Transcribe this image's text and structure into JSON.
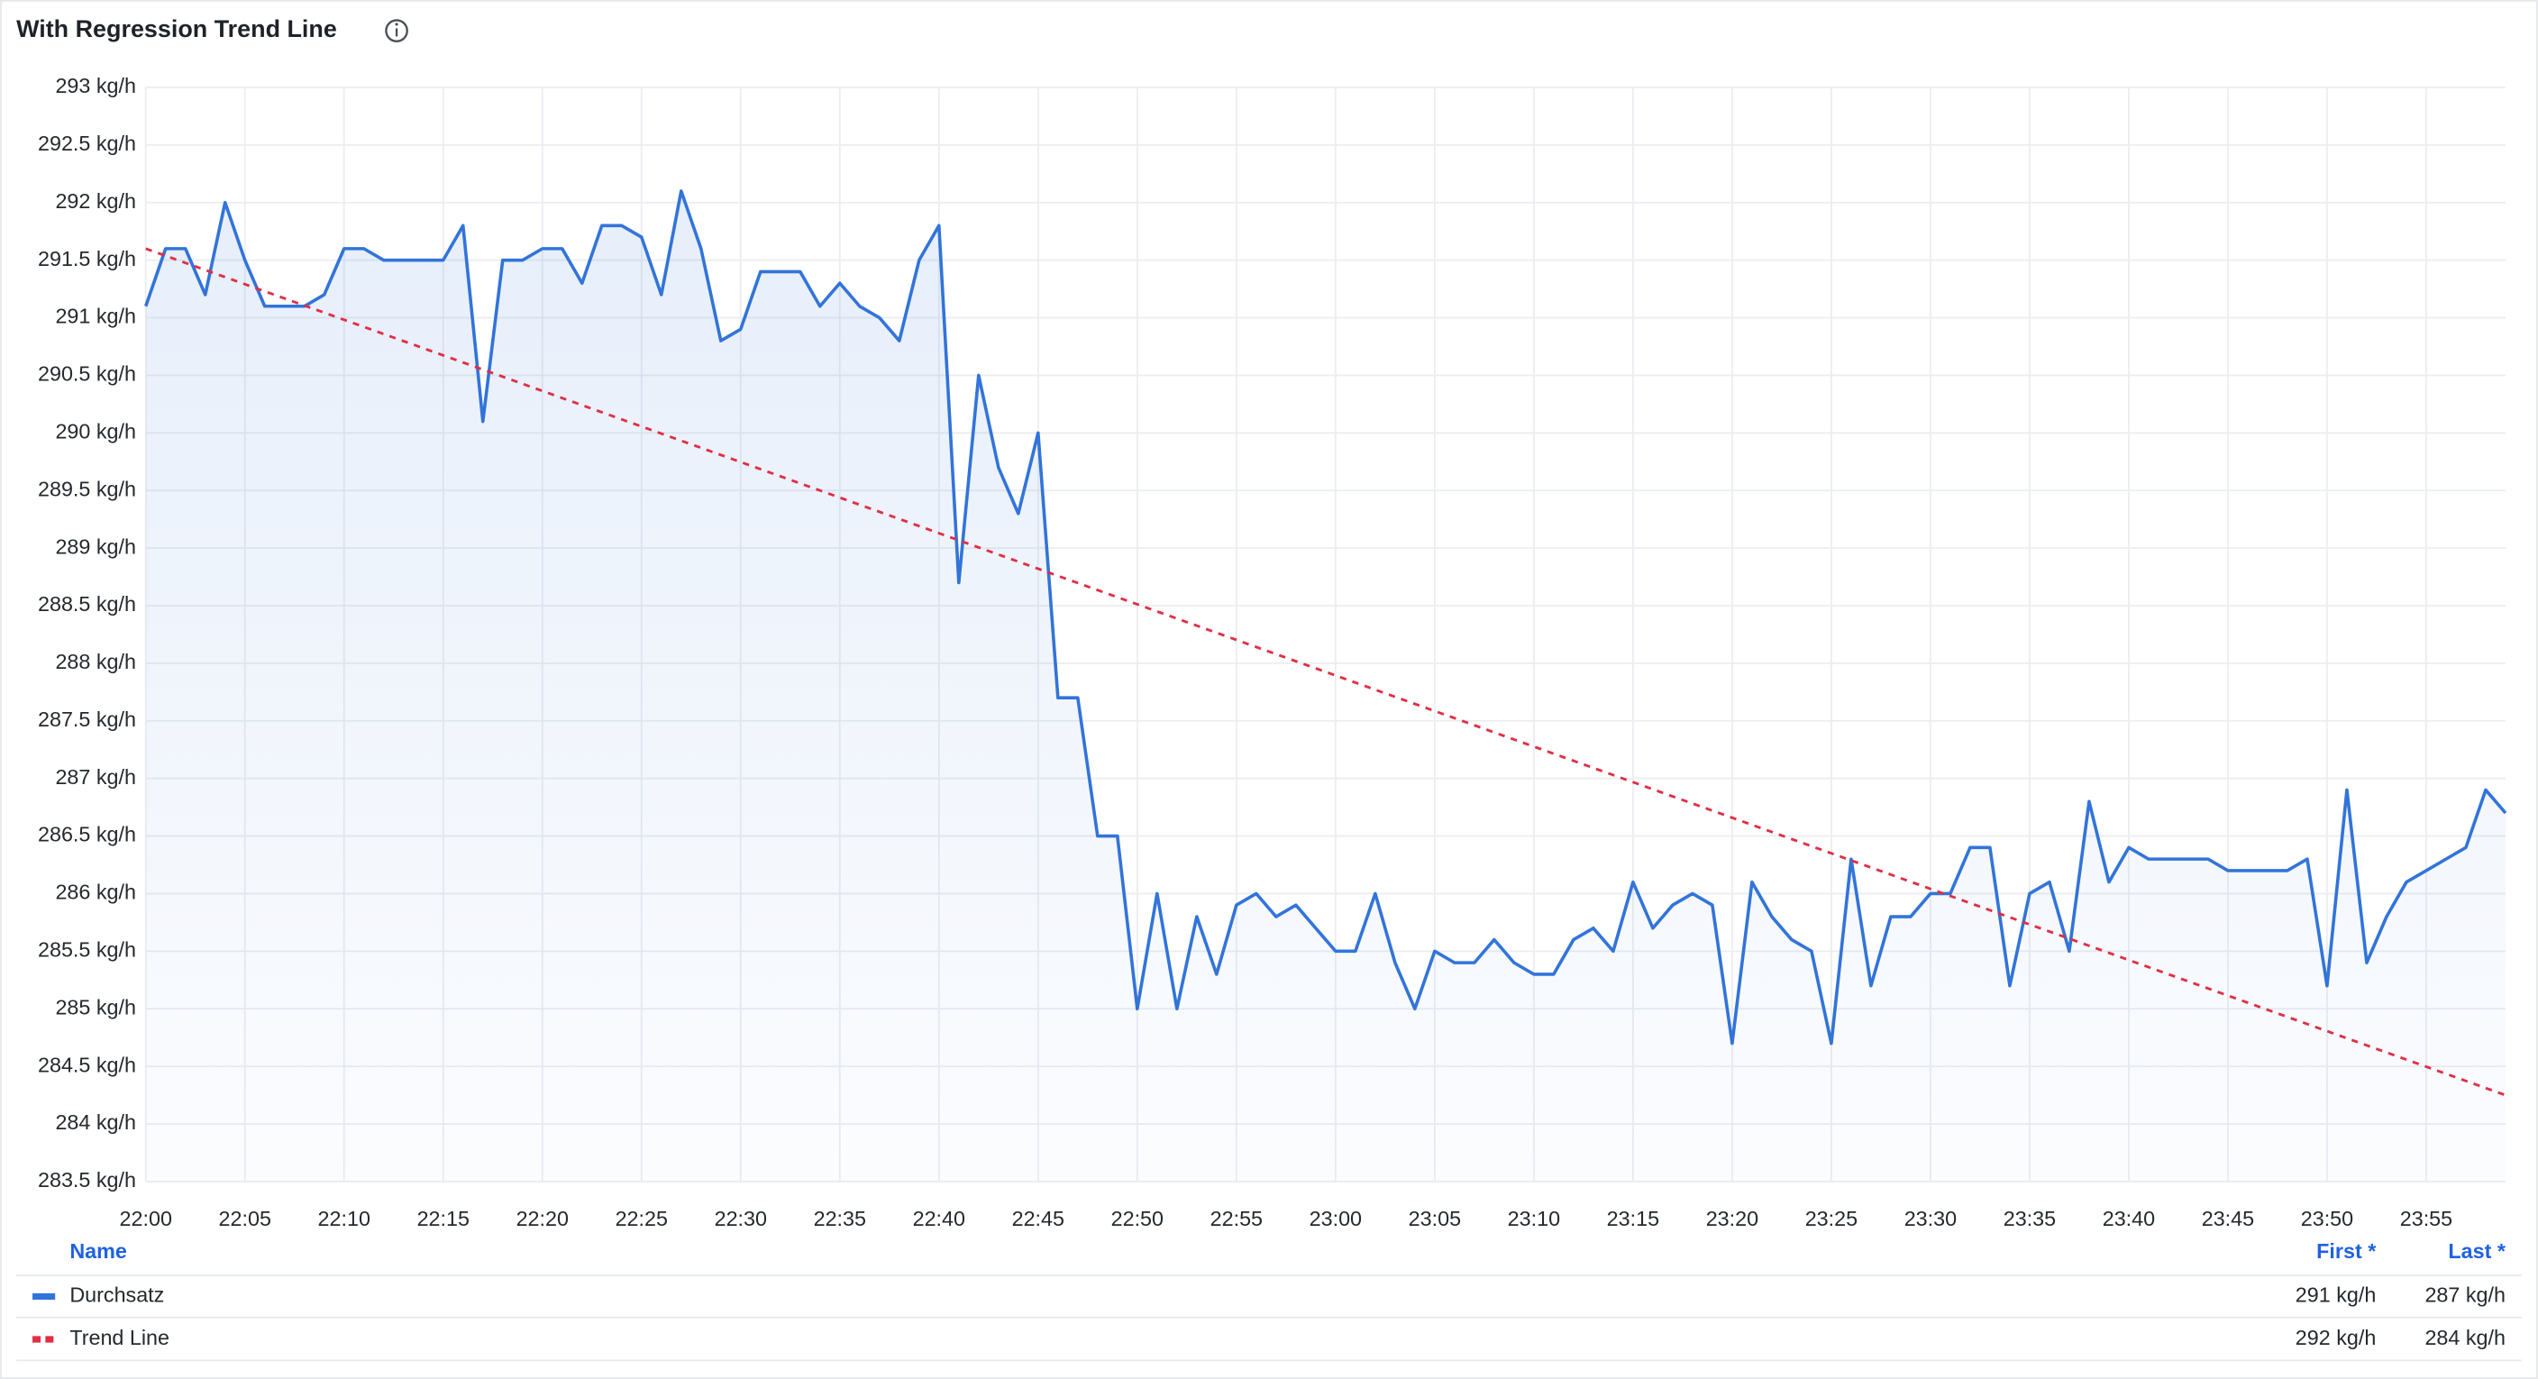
{
  "chart_data": {
    "type": "line",
    "title": "With Regression Trend Line",
    "x": [
      "22:00",
      "22:01",
      "22:02",
      "22:03",
      "22:04",
      "22:05",
      "22:06",
      "22:07",
      "22:08",
      "22:09",
      "22:10",
      "22:11",
      "22:12",
      "22:13",
      "22:14",
      "22:15",
      "22:16",
      "22:17",
      "22:18",
      "22:19",
      "22:20",
      "22:21",
      "22:22",
      "22:23",
      "22:24",
      "22:25",
      "22:26",
      "22:27",
      "22:28",
      "22:29",
      "22:30",
      "22:31",
      "22:32",
      "22:33",
      "22:34",
      "22:35",
      "22:36",
      "22:37",
      "22:38",
      "22:39",
      "22:40",
      "22:41",
      "22:42",
      "22:43",
      "22:44",
      "22:45",
      "22:46",
      "22:47",
      "22:48",
      "22:49",
      "22:50",
      "22:51",
      "22:52",
      "22:53",
      "22:54",
      "22:55",
      "22:56",
      "22:57",
      "22:58",
      "22:59",
      "23:00",
      "23:01",
      "23:02",
      "23:03",
      "23:04",
      "23:05",
      "23:06",
      "23:07",
      "23:08",
      "23:09",
      "23:10",
      "23:11",
      "23:12",
      "23:13",
      "23:14",
      "23:15",
      "23:16",
      "23:17",
      "23:18",
      "23:19",
      "23:20",
      "23:21",
      "23:22",
      "23:23",
      "23:24",
      "23:25",
      "23:26",
      "23:27",
      "23:28",
      "23:29",
      "23:30",
      "23:31",
      "23:32",
      "23:33",
      "23:34",
      "23:35",
      "23:36",
      "23:37",
      "23:38",
      "23:39",
      "23:40",
      "23:41",
      "23:42",
      "23:43",
      "23:44",
      "23:45",
      "23:46",
      "23:47",
      "23:48",
      "23:49",
      "23:50",
      "23:51",
      "23:52",
      "23:53",
      "23:54",
      "23:55",
      "23:56",
      "23:57",
      "23:58",
      "23:59"
    ],
    "series": [
      {
        "name": "Durchsatz",
        "color": "#3274d9",
        "line_style": "solid",
        "fill": true,
        "values": [
          291.1,
          291.6,
          291.6,
          291.2,
          292.0,
          291.5,
          291.1,
          291.1,
          291.1,
          291.2,
          291.6,
          291.6,
          291.5,
          291.5,
          291.5,
          291.5,
          291.8,
          290.1,
          291.5,
          291.5,
          291.6,
          291.6,
          291.3,
          291.8,
          291.8,
          291.7,
          291.2,
          292.1,
          291.6,
          290.8,
          290.9,
          291.4,
          291.4,
          291.4,
          291.1,
          291.3,
          291.1,
          291.0,
          290.8,
          291.5,
          291.8,
          288.7,
          290.5,
          289.7,
          289.3,
          290.0,
          287.7,
          287.7,
          286.5,
          286.5,
          285.0,
          286.0,
          285.0,
          285.8,
          285.3,
          285.9,
          286.0,
          285.8,
          285.9,
          285.7,
          285.5,
          285.5,
          286.0,
          285.4,
          285.0,
          285.5,
          285.4,
          285.4,
          285.6,
          285.4,
          285.3,
          285.3,
          285.6,
          285.7,
          285.5,
          286.1,
          285.7,
          285.9,
          286.0,
          285.9,
          284.7,
          286.1,
          285.8,
          285.6,
          285.5,
          284.7,
          286.3,
          285.2,
          285.8,
          285.8,
          286.0,
          286.0,
          286.4,
          286.4,
          285.2,
          286.0,
          286.1,
          285.5,
          286.8,
          286.1,
          286.4,
          286.3,
          286.3,
          286.3,
          286.3,
          286.2,
          286.2,
          286.2,
          286.2,
          286.3,
          285.2,
          286.9,
          285.4,
          285.8,
          286.1,
          286.2,
          286.3,
          286.4,
          286.9,
          286.7
        ]
      },
      {
        "name": "Trend Line",
        "color": "#e02f44",
        "line_style": "dashed",
        "fill": false,
        "x": [
          "22:00",
          "23:59"
        ],
        "values": [
          291.6,
          284.25
        ]
      }
    ],
    "xlim": [
      "22:00",
      "23:59"
    ],
    "xticks": [
      "22:00",
      "22:05",
      "22:10",
      "22:15",
      "22:20",
      "22:25",
      "22:30",
      "22:35",
      "22:40",
      "22:45",
      "22:50",
      "22:55",
      "23:00",
      "23:05",
      "23:10",
      "23:15",
      "23:20",
      "23:25",
      "23:30",
      "23:35",
      "23:40",
      "23:45",
      "23:50",
      "23:55"
    ],
    "ylim": [
      283.5,
      293
    ],
    "yticks": [
      {
        "value": 283.5,
        "label": "283.5 kg/h"
      },
      {
        "value": 284,
        "label": "284 kg/h"
      },
      {
        "value": 284.5,
        "label": "284.5 kg/h"
      },
      {
        "value": 285,
        "label": "285 kg/h"
      },
      {
        "value": 285.5,
        "label": "285.5 kg/h"
      },
      {
        "value": 286,
        "label": "286 kg/h"
      },
      {
        "value": 286.5,
        "label": "286.5 kg/h"
      },
      {
        "value": 287,
        "label": "287 kg/h"
      },
      {
        "value": 287.5,
        "label": "287.5 kg/h"
      },
      {
        "value": 288,
        "label": "288 kg/h"
      },
      {
        "value": 288.5,
        "label": "288.5 kg/h"
      },
      {
        "value": 289,
        "label": "289 kg/h"
      },
      {
        "value": 289.5,
        "label": "289.5 kg/h"
      },
      {
        "value": 290,
        "label": "290 kg/h"
      },
      {
        "value": 290.5,
        "label": "290.5 kg/h"
      },
      {
        "value": 291,
        "label": "291 kg/h"
      },
      {
        "value": 291.5,
        "label": "291.5 kg/h"
      },
      {
        "value": 292,
        "label": "292 kg/h"
      },
      {
        "value": 292.5,
        "label": "292.5 kg/h"
      },
      {
        "value": 293,
        "label": "293 kg/h"
      }
    ],
    "grid": true,
    "legend": {
      "position": "bottom",
      "columns": [
        "Name",
        "First *",
        "Last *"
      ],
      "stats": [
        [
          "291 kg/h",
          "287 kg/h"
        ],
        [
          "292 kg/h",
          "284 kg/h"
        ]
      ]
    }
  }
}
